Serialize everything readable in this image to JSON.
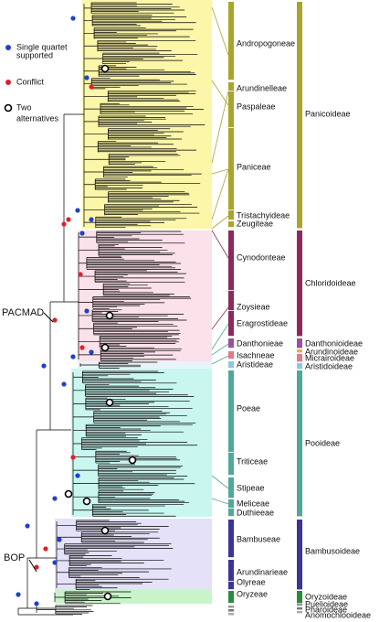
{
  "legend": [
    {
      "lines": [
        "Single quartet",
        "supported"
      ],
      "color": "#1f3fd0",
      "kind": "filled"
    },
    {
      "lines": [
        "Conflict"
      ],
      "color": "#e0202a",
      "kind": "filled"
    },
    {
      "lines": [
        "Two",
        "alternatives"
      ],
      "color": "#000000",
      "kind": "open"
    }
  ],
  "clades": [
    "PACMAD",
    "BOP"
  ],
  "tribes": [
    "Andropogoneae",
    "Arundinelleae",
    "Paspaleae",
    "Paniceae",
    "Tristachyideae",
    "Zeugiteae",
    "Cynodonteae",
    "Zoysieae",
    "Eragrostideae",
    "Danthonieae",
    "Isachneae",
    "Aristideae",
    "Poeae",
    "Triticeae",
    "Stipeae",
    "Meliceae",
    "Duthieeae",
    "Bambuseae",
    "Arundinarieae",
    "Olyreae",
    "Oryzeae"
  ],
  "subfamilies": [
    "Panicoideae",
    "Chloridoideae",
    "Danthonioideae",
    "Arundinoideae",
    "Micrairoideae",
    "Aristidoideae",
    "Pooideae",
    "Bambusoideae",
    "Oryzoideae",
    "Puelioideae",
    "Pharoideae",
    "Anomochlooideae"
  ]
}
